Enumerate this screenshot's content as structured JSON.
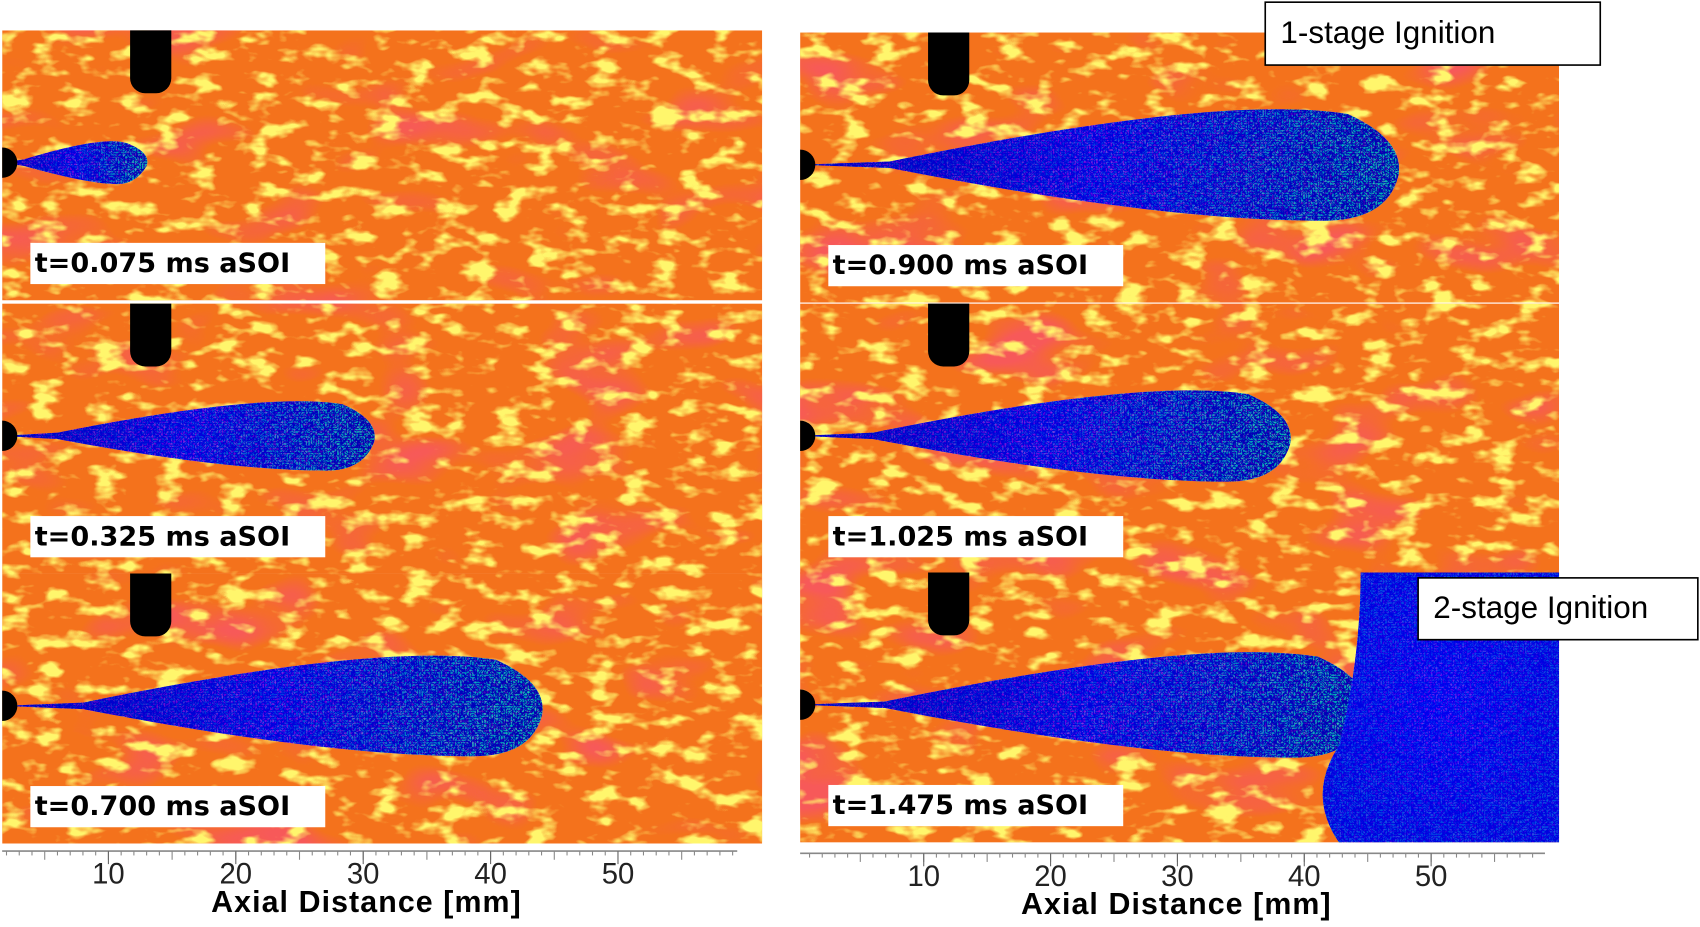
{
  "panels": [
    {
      "label": "t=0.075 ms aSOI"
    },
    {
      "label": "t=0.325 ms aSOI"
    },
    {
      "label": "t=0.700 ms aSOI"
    },
    {
      "label": "t=0.900 ms aSOI"
    },
    {
      "label": "t=1.025 ms aSOI"
    },
    {
      "label": "t=1.475 ms aSOI"
    }
  ],
  "axes": [
    {
      "ticks": [
        10,
        20,
        30,
        40,
        50
      ],
      "title": "Axial Distance [mm]"
    },
    {
      "ticks": [
        10,
        20,
        30,
        40,
        50
      ],
      "title": "Axial Distance [mm]"
    }
  ],
  "annotations": [
    {
      "text": "1-stage Ignition"
    },
    {
      "text": "2-stage Ignition"
    }
  ]
}
